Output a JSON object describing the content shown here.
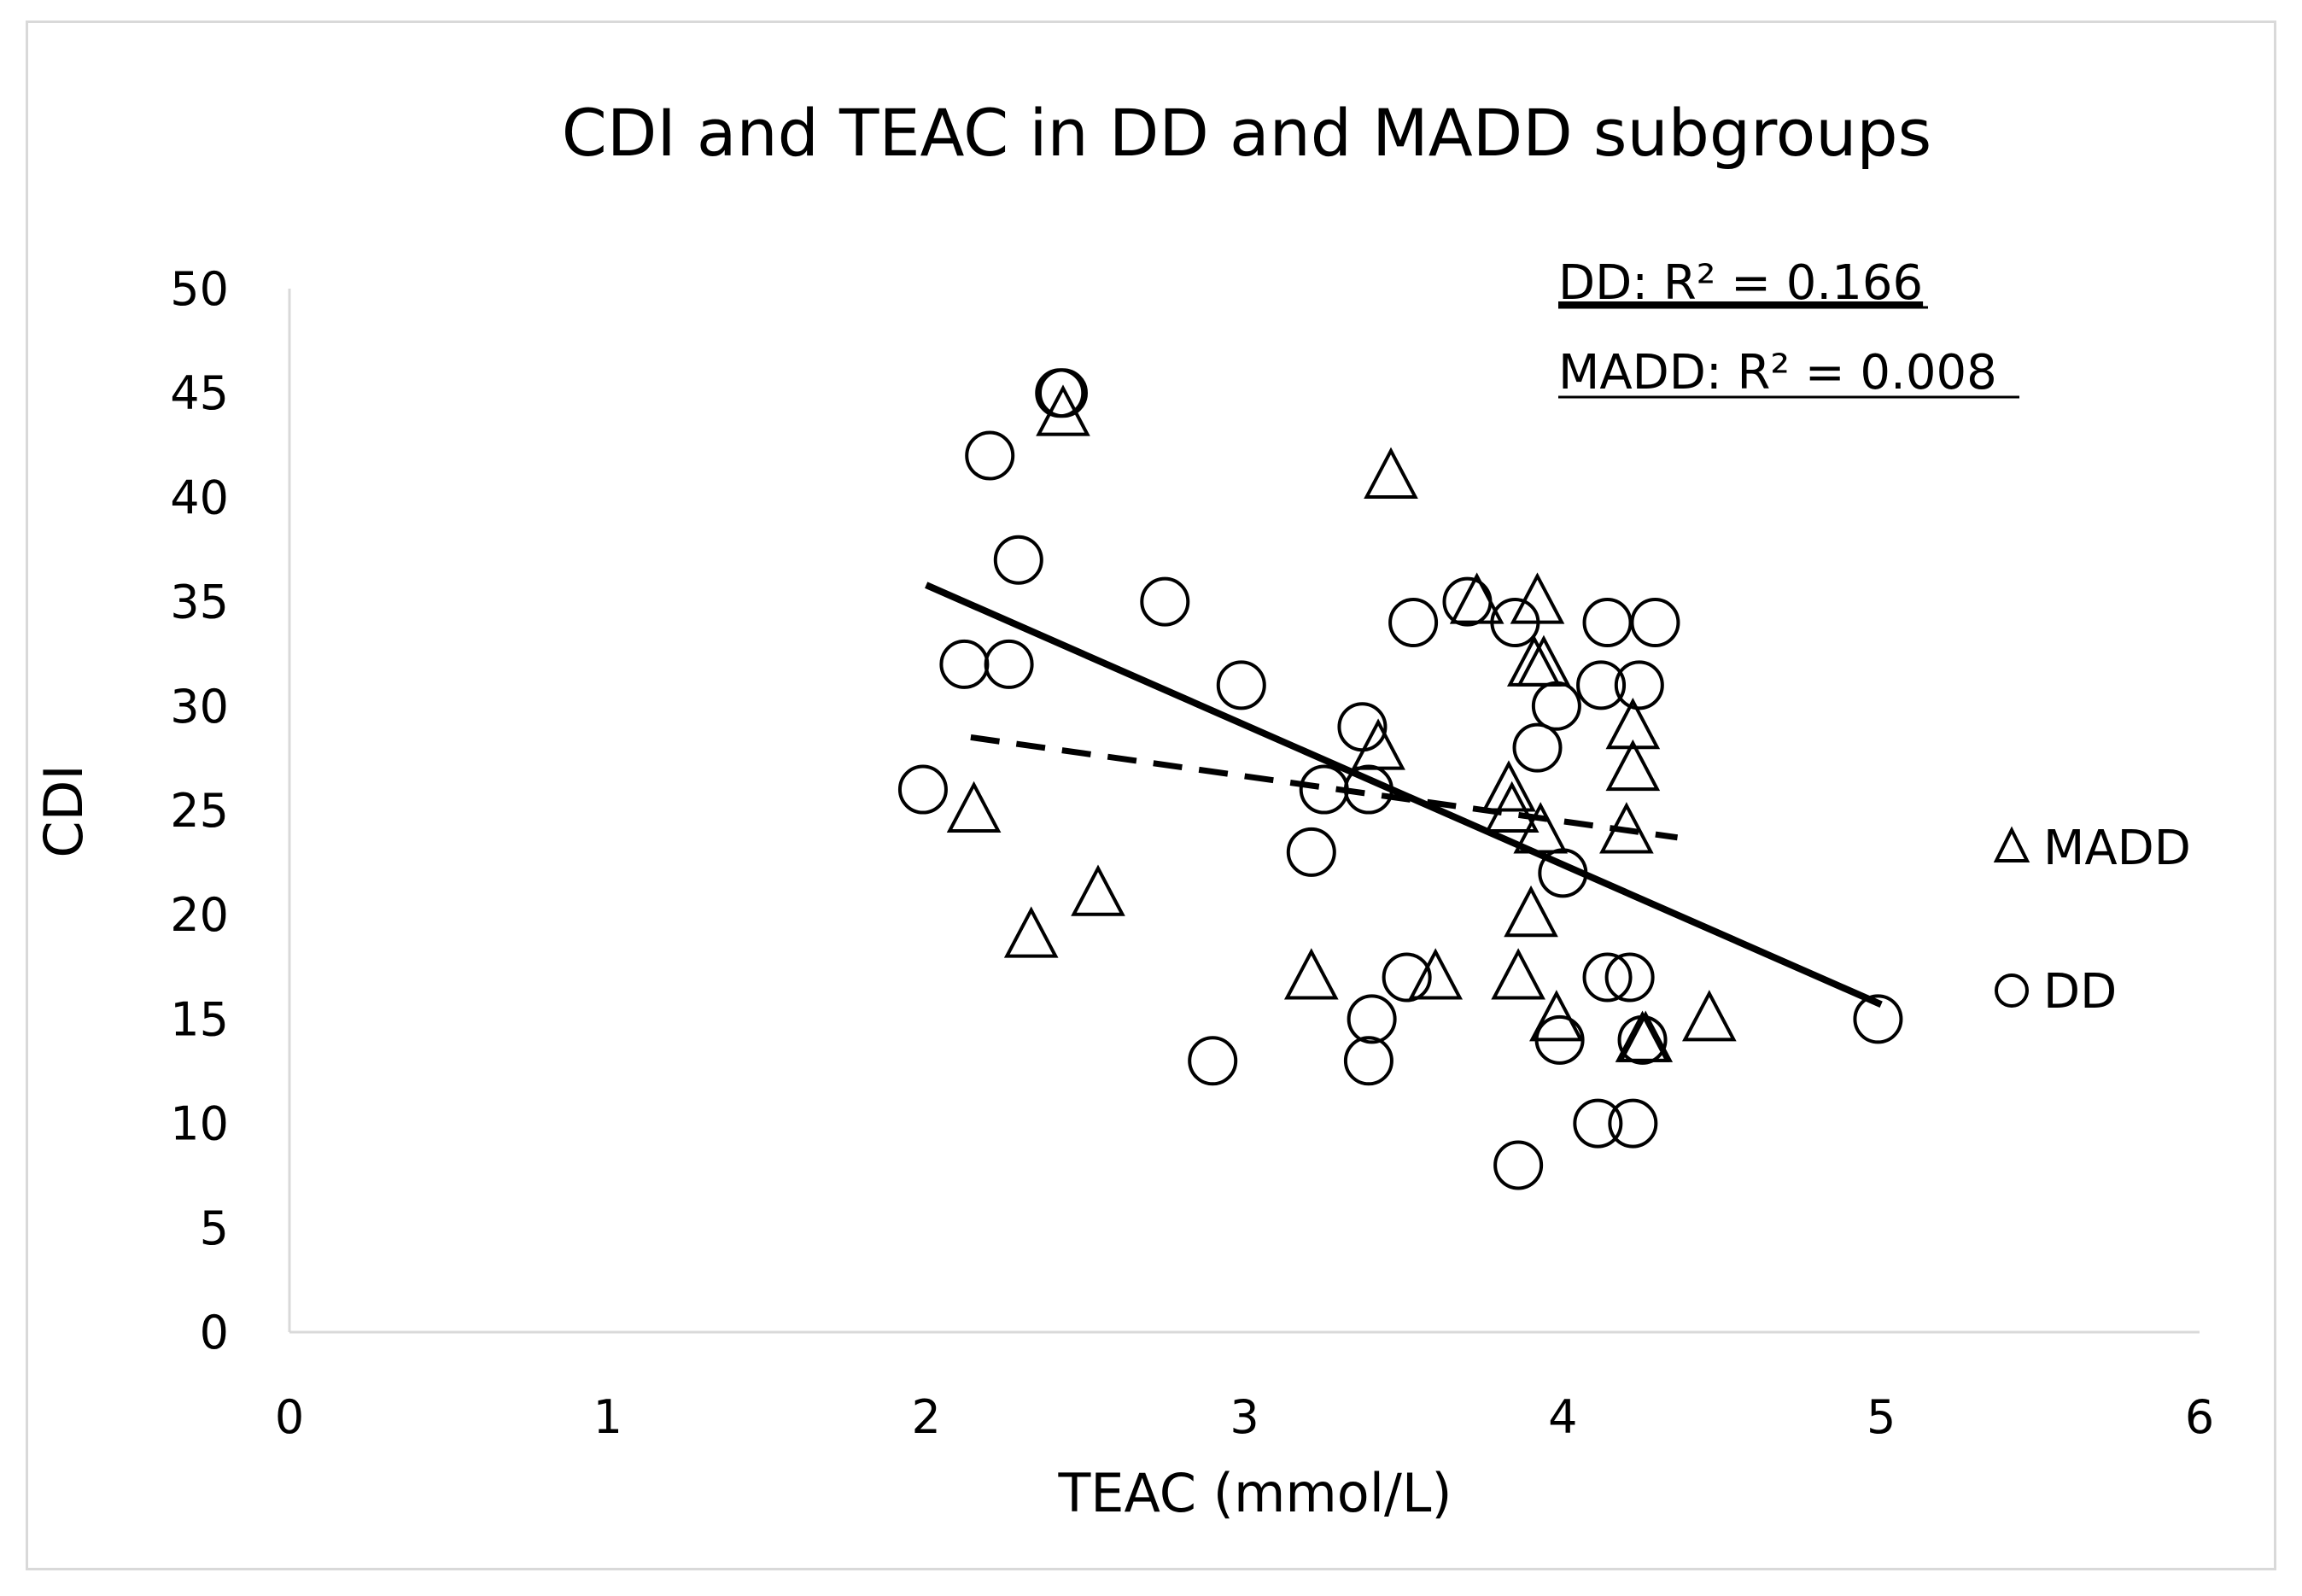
{
  "chart_data": {
    "type": "scatter",
    "title": "CDI and TEAC in DD and MADD subgroups",
    "xlabel": "TEAC (mmol/L)",
    "ylabel": "CDI",
    "xlim": [
      0,
      6
    ],
    "ylim": [
      0,
      50
    ],
    "xticks": [
      0,
      1,
      2,
      3,
      4,
      5,
      6
    ],
    "yticks": [
      0,
      5,
      10,
      15,
      20,
      25,
      30,
      35,
      40,
      45,
      50
    ],
    "grid": false,
    "legend_position": "right",
    "series": [
      {
        "name": "MADD",
        "marker": "triangle",
        "points": [
          [
            2.43,
            44
          ],
          [
            3.46,
            41
          ],
          [
            3.73,
            35
          ],
          [
            3.92,
            35
          ],
          [
            3.91,
            32
          ],
          [
            3.94,
            32
          ],
          [
            3.42,
            28
          ],
          [
            4.22,
            29
          ],
          [
            4.22,
            27
          ],
          [
            3.83,
            26
          ],
          [
            3.84,
            25
          ],
          [
            2.15,
            25
          ],
          [
            3.93,
            24
          ],
          [
            4.2,
            24
          ],
          [
            2.54,
            21
          ],
          [
            2.33,
            19
          ],
          [
            3.9,
            20
          ],
          [
            3.21,
            17
          ],
          [
            3.6,
            17
          ],
          [
            3.86,
            17
          ],
          [
            3.98,
            15
          ],
          [
            4.46,
            15
          ],
          [
            4.25,
            14
          ],
          [
            4.26,
            14
          ]
        ]
      },
      {
        "name": "DD",
        "marker": "circle",
        "points": [
          [
            2.42,
            45
          ],
          [
            2.43,
            45
          ],
          [
            2.2,
            42
          ],
          [
            2.29,
            37
          ],
          [
            2.75,
            35
          ],
          [
            3.7,
            35
          ],
          [
            3.53,
            34
          ],
          [
            3.85,
            34
          ],
          [
            4.14,
            34
          ],
          [
            4.29,
            34
          ],
          [
            2.12,
            32
          ],
          [
            2.26,
            32
          ],
          [
            2.99,
            31
          ],
          [
            4.12,
            31
          ],
          [
            4.24,
            31
          ],
          [
            3.98,
            30
          ],
          [
            3.37,
            29
          ],
          [
            3.92,
            28
          ],
          [
            1.99,
            26
          ],
          [
            3.25,
            26
          ],
          [
            3.39,
            26
          ],
          [
            4.0,
            22
          ],
          [
            3.21,
            23
          ],
          [
            3.51,
            17
          ],
          [
            4.14,
            17
          ],
          [
            4.21,
            17
          ],
          [
            3.4,
            15
          ],
          [
            4.99,
            15
          ],
          [
            3.99,
            14
          ],
          [
            4.25,
            14
          ],
          [
            2.9,
            13
          ],
          [
            3.39,
            13
          ],
          [
            4.11,
            10
          ],
          [
            4.22,
            10
          ],
          [
            3.86,
            8
          ]
        ]
      }
    ],
    "trendlines": [
      {
        "name": "DD",
        "style": "solid",
        "x": [
          2.0,
          5.0
        ],
        "y": [
          35.8,
          15.7
        ],
        "r2_label": "DD: R² = 0.166"
      },
      {
        "name": "MADD",
        "style": "dashed",
        "x": [
          2.14,
          4.36
        ],
        "y": [
          28.5,
          23.7
        ],
        "r2_label": "MADD: R² = 0.008"
      }
    ]
  }
}
